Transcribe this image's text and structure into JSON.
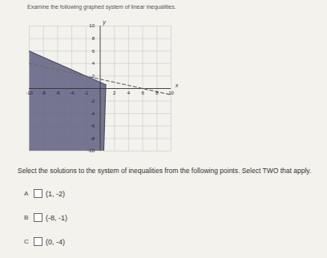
{
  "instruction": "Examine the following graphed system of linear inequalities.",
  "chart_data": {
    "type": "line",
    "xlabel": "x",
    "ylabel": "y",
    "xlim": [
      -10,
      10
    ],
    "ylim": [
      -10,
      10
    ],
    "xticks": [
      -10,
      -8,
      -6,
      -4,
      -2,
      2,
      4,
      6,
      8,
      10
    ],
    "yticks": [
      -10,
      -8,
      -6,
      -4,
      -2,
      2,
      4,
      6,
      8,
      10
    ],
    "grid": true,
    "series": [
      {
        "x": [
          -10,
          0.79
        ],
        "values": [
          6,
          0.6
        ],
        "line_style": "solid",
        "color": "#4a4a66"
      },
      {
        "x": [
          0.79,
          0.5
        ],
        "values": [
          0.6,
          -10
        ],
        "line_style": "solid",
        "color": "#4a4a66"
      },
      {
        "x": [
          -10,
          10
        ],
        "values": [
          4,
          -1
        ],
        "line_style": "dashed",
        "color": "#6a6a6a"
      }
    ],
    "regions": [
      {
        "x": [
          -10,
          0.79,
          0.5,
          -10,
          -10
        ],
        "values": [
          6,
          0.6,
          -10,
          -10,
          6
        ],
        "color": "#5f5f80"
      }
    ]
  },
  "prompt": "Select the solutions to the system of inequalities from the following points. Select TWO that apply.",
  "options": [
    {
      "letter": "A",
      "text": "(1, -2)"
    },
    {
      "letter": "B",
      "text": "(-8, -1)"
    },
    {
      "letter": "C",
      "text": "(0, -4)"
    }
  ]
}
